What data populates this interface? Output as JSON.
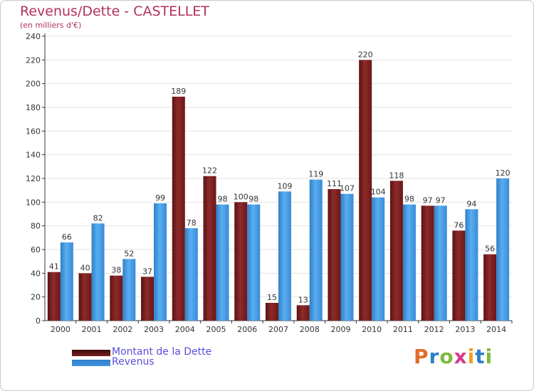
{
  "chart_data": {
    "type": "bar",
    "title": "Revenus/Dette - CASTELLET",
    "subtitle": "(en milliers d'€)",
    "categories": [
      "2000",
      "2001",
      "2002",
      "2003",
      "2004",
      "2005",
      "2006",
      "2007",
      "2008",
      "2009",
      "2010",
      "2011",
      "2012",
      "2013",
      "2014"
    ],
    "series": [
      {
        "name": "Montant de la Dette",
        "color": "#7a1f1f",
        "values": [
          41,
          40,
          38,
          37,
          189,
          122,
          100,
          15,
          13,
          111,
          220,
          118,
          97,
          76,
          56
        ]
      },
      {
        "name": "Revenus",
        "color": "#3f95dd",
        "values": [
          66,
          82,
          52,
          99,
          78,
          98,
          98,
          109,
          119,
          107,
          104,
          98,
          97,
          94,
          120
        ]
      }
    ],
    "ylim": [
      0,
      240
    ],
    "yticks": [
      0,
      20,
      40,
      60,
      80,
      100,
      120,
      140,
      160,
      180,
      200,
      220,
      240
    ],
    "grid": true,
    "legend_position": "bottom-left"
  },
  "logo": {
    "letters": [
      {
        "ch": "P",
        "color": "#e36b2b"
      },
      {
        "ch": "r",
        "color": "#2e7fc8"
      },
      {
        "ch": "o",
        "color": "#7fb93a"
      },
      {
        "ch": "x",
        "color": "#d83a8a"
      },
      {
        "ch": "i",
        "color": "#f0a020"
      },
      {
        "ch": "t",
        "color": "#2e7fc8"
      },
      {
        "ch": "i",
        "color": "#7fb93a"
      }
    ]
  }
}
